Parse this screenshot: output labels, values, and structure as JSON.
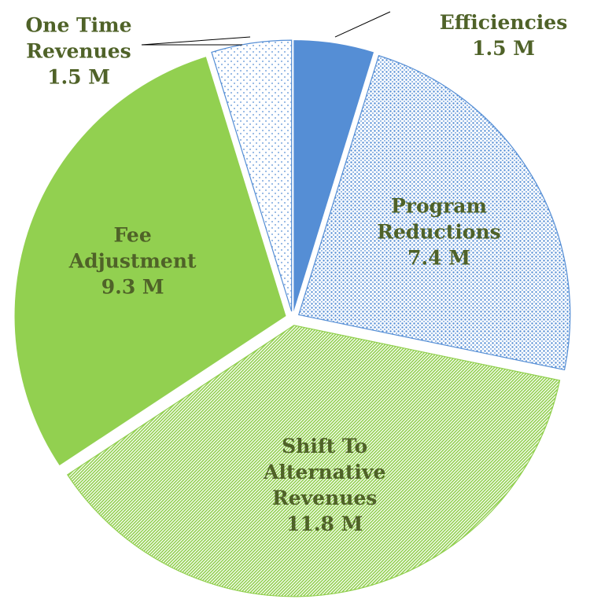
{
  "chart_data": {
    "type": "pie",
    "categories": [
      "Efficiencies",
      "Program Reductions",
      "Shift To Alternative Revenues",
      "Fee Adjustment",
      "One Time Revenues"
    ],
    "values": [
      1.5,
      7.4,
      11.8,
      9.3,
      1.5
    ],
    "value_labels": [
      "1.5 M",
      "7.4 M",
      "11.8 M",
      "9.3 M",
      "1.5 M"
    ],
    "colors": [
      "#558ed5",
      "#558ed5",
      "#92d050",
      "#92d050",
      "#558ed5"
    ],
    "fills": [
      "solid",
      "dense-dots",
      "diagonal-hatch",
      "solid",
      "sparse-dots"
    ],
    "label_color": "#4f6228"
  }
}
